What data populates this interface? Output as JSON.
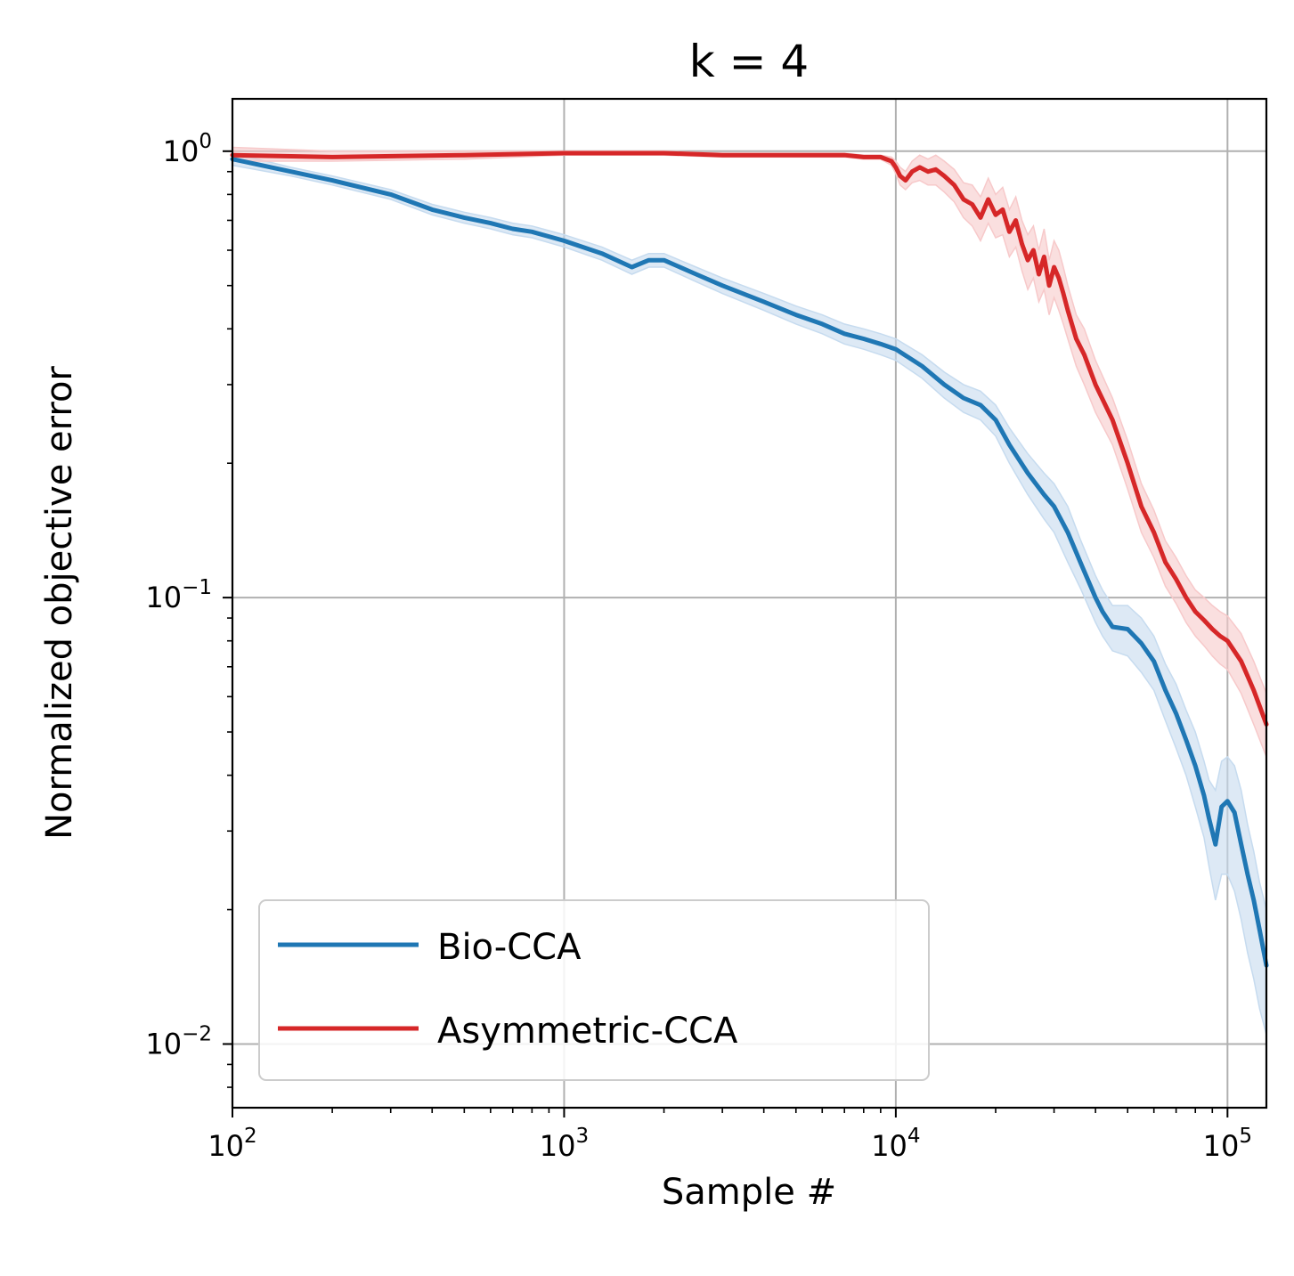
{
  "chart_data": {
    "type": "line",
    "title": "k = 4",
    "xlabel": "Sample #",
    "ylabel": "Normalized objective error",
    "xscale": "log",
    "yscale": "log",
    "xlim": [
      100,
      131000
    ],
    "ylim": [
      0.0072,
      1.31
    ],
    "grid": true,
    "legend_position": "lower-left",
    "x_ticks": [
      {
        "value": 100,
        "base": "10",
        "exp": "2"
      },
      {
        "value": 1000,
        "base": "10",
        "exp": "3"
      },
      {
        "value": 10000,
        "base": "10",
        "exp": "4"
      },
      {
        "value": 100000,
        "base": "10",
        "exp": "5"
      }
    ],
    "y_ticks": [
      {
        "value": 1,
        "base": "10",
        "exp": "0"
      },
      {
        "value": 0.1,
        "base": "10",
        "exp": "−1"
      },
      {
        "value": 0.01,
        "base": "10",
        "exp": "−2"
      }
    ],
    "series": [
      {
        "name": "Bio-CCA",
        "color": "#1f77b4",
        "band_color": "#c6dbef",
        "x": [
          100,
          150,
          200,
          300,
          400,
          500,
          600,
          700,
          800,
          1000,
          1300,
          1600,
          1800,
          2000,
          2500,
          3000,
          4000,
          5000,
          6000,
          7000,
          8000,
          9000,
          10000,
          12000,
          14000,
          16000,
          18000,
          20000,
          22000,
          25000,
          28000,
          30000,
          33000,
          36000,
          40000,
          42000,
          45000,
          50000,
          55000,
          60000,
          65000,
          70000,
          75000,
          80000,
          85000,
          88000,
          92000,
          96000,
          100000,
          105000,
          110000,
          115000,
          120000,
          125000,
          131000
        ],
        "y": [
          0.96,
          0.9,
          0.86,
          0.8,
          0.74,
          0.71,
          0.69,
          0.67,
          0.66,
          0.63,
          0.59,
          0.55,
          0.57,
          0.57,
          0.53,
          0.5,
          0.46,
          0.43,
          0.41,
          0.39,
          0.38,
          0.37,
          0.36,
          0.33,
          0.3,
          0.28,
          0.27,
          0.25,
          0.22,
          0.19,
          0.17,
          0.16,
          0.14,
          0.12,
          0.1,
          0.093,
          0.086,
          0.085,
          0.079,
          0.072,
          0.062,
          0.055,
          0.048,
          0.042,
          0.036,
          0.032,
          0.028,
          0.034,
          0.035,
          0.033,
          0.028,
          0.024,
          0.021,
          0.018,
          0.015
        ],
        "y_lower": [
          0.93,
          0.88,
          0.84,
          0.78,
          0.72,
          0.69,
          0.67,
          0.65,
          0.64,
          0.61,
          0.57,
          0.53,
          0.55,
          0.55,
          0.51,
          0.48,
          0.44,
          0.41,
          0.39,
          0.37,
          0.36,
          0.35,
          0.34,
          0.31,
          0.28,
          0.26,
          0.25,
          0.23,
          0.2,
          0.17,
          0.15,
          0.14,
          0.12,
          0.105,
          0.088,
          0.082,
          0.076,
          0.074,
          0.068,
          0.062,
          0.053,
          0.046,
          0.04,
          0.034,
          0.029,
          0.025,
          0.021,
          0.024,
          0.024,
          0.022,
          0.019,
          0.016,
          0.014,
          0.012,
          0.0105
        ],
        "y_upper": [
          0.99,
          0.92,
          0.88,
          0.82,
          0.76,
          0.73,
          0.71,
          0.69,
          0.68,
          0.65,
          0.61,
          0.57,
          0.59,
          0.59,
          0.55,
          0.52,
          0.48,
          0.45,
          0.43,
          0.41,
          0.4,
          0.39,
          0.38,
          0.35,
          0.32,
          0.3,
          0.29,
          0.27,
          0.24,
          0.21,
          0.19,
          0.18,
          0.16,
          0.135,
          0.112,
          0.104,
          0.096,
          0.096,
          0.09,
          0.082,
          0.071,
          0.064,
          0.056,
          0.05,
          0.043,
          0.039,
          0.037,
          0.043,
          0.044,
          0.042,
          0.037,
          0.031,
          0.027,
          0.023,
          0.02
        ]
      },
      {
        "name": "Asymmetric-CCA",
        "color": "#d62728",
        "band_color": "#f7c9ca",
        "x": [
          100,
          200,
          500,
          1000,
          2000,
          3000,
          5000,
          7000,
          8000,
          9000,
          9700,
          10000,
          10300,
          10700,
          11200,
          11800,
          12500,
          13200,
          14000,
          15000,
          16000,
          17000,
          18000,
          19000,
          20000,
          21000,
          22000,
          23000,
          24000,
          25000,
          26000,
          27000,
          28000,
          29000,
          30000,
          31000,
          32000,
          33000,
          35000,
          37000,
          40000,
          45000,
          50000,
          55000,
          60000,
          65000,
          70000,
          75000,
          80000,
          85000,
          90000,
          95000,
          100000,
          110000,
          120000,
          131000
        ],
        "y": [
          0.98,
          0.97,
          0.98,
          0.99,
          0.99,
          0.98,
          0.98,
          0.98,
          0.97,
          0.97,
          0.95,
          0.92,
          0.88,
          0.86,
          0.9,
          0.92,
          0.9,
          0.91,
          0.88,
          0.84,
          0.78,
          0.76,
          0.71,
          0.78,
          0.72,
          0.74,
          0.66,
          0.7,
          0.62,
          0.57,
          0.6,
          0.53,
          0.58,
          0.5,
          0.55,
          0.52,
          0.48,
          0.44,
          0.38,
          0.35,
          0.3,
          0.25,
          0.2,
          0.16,
          0.14,
          0.12,
          0.11,
          0.1,
          0.093,
          0.089,
          0.085,
          0.082,
          0.08,
          0.072,
          0.062,
          0.052
        ],
        "y_lower": [
          0.95,
          0.95,
          0.96,
          0.98,
          0.98,
          0.97,
          0.97,
          0.97,
          0.96,
          0.96,
          0.93,
          0.89,
          0.84,
          0.82,
          0.85,
          0.86,
          0.84,
          0.84,
          0.81,
          0.77,
          0.71,
          0.68,
          0.63,
          0.69,
          0.64,
          0.65,
          0.58,
          0.61,
          0.54,
          0.49,
          0.52,
          0.46,
          0.49,
          0.43,
          0.47,
          0.44,
          0.41,
          0.38,
          0.33,
          0.3,
          0.26,
          0.22,
          0.175,
          0.14,
          0.123,
          0.106,
          0.097,
          0.088,
          0.082,
          0.078,
          0.074,
          0.071,
          0.069,
          0.061,
          0.052,
          0.044
        ],
        "y_upper": [
          1.02,
          1.0,
          1.0,
          1.0,
          1.0,
          0.99,
          0.99,
          0.99,
          0.98,
          0.98,
          0.97,
          0.95,
          0.92,
          0.9,
          0.95,
          0.98,
          0.96,
          0.98,
          0.95,
          0.91,
          0.85,
          0.84,
          0.79,
          0.87,
          0.8,
          0.83,
          0.74,
          0.79,
          0.7,
          0.65,
          0.68,
          0.6,
          0.67,
          0.57,
          0.63,
          0.6,
          0.55,
          0.5,
          0.43,
          0.4,
          0.34,
          0.28,
          0.225,
          0.18,
          0.157,
          0.134,
          0.123,
          0.112,
          0.104,
          0.1,
          0.096,
          0.093,
          0.091,
          0.083,
          0.072,
          0.061
        ]
      }
    ]
  }
}
